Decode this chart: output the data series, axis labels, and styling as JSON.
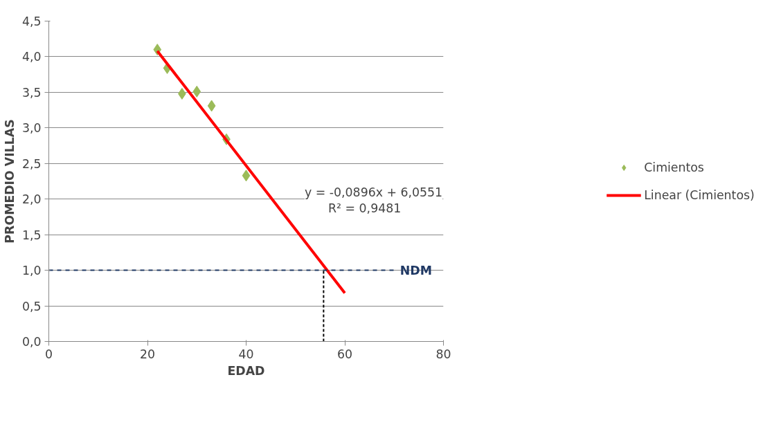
{
  "chart_data": {
    "type": "scatter",
    "xlabel": "EDAD",
    "ylabel": "PROMEDIO VILLAS",
    "xlim": [
      0,
      80
    ],
    "xticks": [
      0,
      20,
      40,
      60,
      80
    ],
    "ylim": [
      0,
      4.5
    ],
    "yticks": [
      {
        "value": 0,
        "label": "0,0"
      },
      {
        "value": 0.5,
        "label": "0,5"
      },
      {
        "value": 1,
        "label": "1,0"
      },
      {
        "value": 1.5,
        "label": "1,5"
      },
      {
        "value": 2,
        "label": "2,0"
      },
      {
        "value": 2.5,
        "label": "2,5"
      },
      {
        "value": 3,
        "label": "3,0"
      },
      {
        "value": 3.5,
        "label": "3,5"
      },
      {
        "value": 4,
        "label": "4,0"
      },
      {
        "value": 4.5,
        "label": "4,5"
      }
    ],
    "grid": "y",
    "legend": "right",
    "series": [
      {
        "name": "Cimientos",
        "color": "#9bbb59",
        "marker": "diamond",
        "x": [
          22,
          24,
          27,
          30,
          33,
          36,
          40
        ],
        "values": [
          4.1,
          3.84,
          3.48,
          3.51,
          3.31,
          2.84,
          2.33
        ]
      },
      {
        "name": "Linear (Cimientos)",
        "type": "line",
        "color": "#ff0000",
        "x": [
          22,
          60
        ],
        "values": [
          4.08,
          0.68
        ]
      }
    ],
    "ref_lines": [
      {
        "axis": "y",
        "value": 1,
        "label": "NDM",
        "color": "#1f3864",
        "line_style": "dashed"
      },
      {
        "axis": "x",
        "value": 55.7,
        "color": "#000000",
        "line_style": "dotted"
      }
    ],
    "annotations": [
      "y = -0,0896x + 6,0551",
      "R² = 0,9481"
    ]
  }
}
